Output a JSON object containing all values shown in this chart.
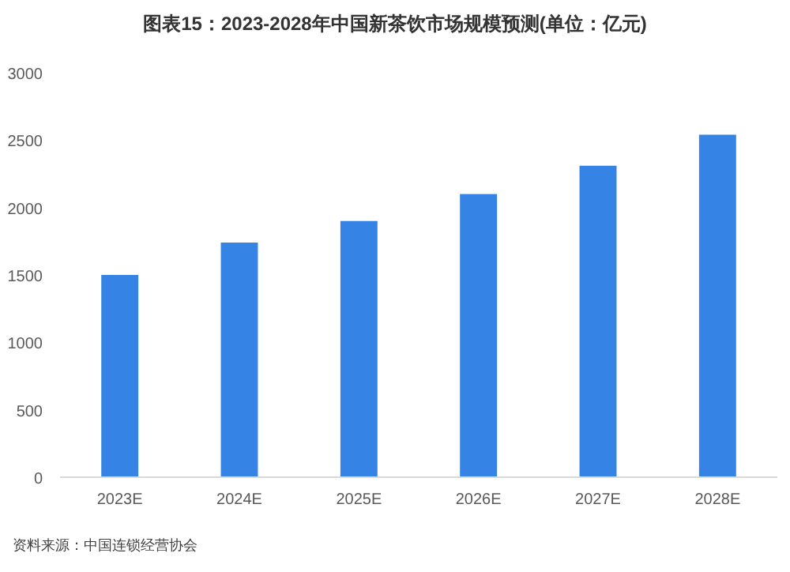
{
  "chart_data": {
    "type": "bar",
    "title": "图表15：2023-2028年中国新茶饮市场规模预测(单位：亿元)",
    "categories": [
      "2023E",
      "2024E",
      "2025E",
      "2026E",
      "2027E",
      "2028E"
    ],
    "values": [
      1500,
      1740,
      1900,
      2100,
      2310,
      2540
    ],
    "color": "#3583e5",
    "ylim": [
      0,
      3000
    ],
    "yticks": [
      0,
      500,
      1000,
      1500,
      2000,
      2500,
      3000
    ],
    "grid": false,
    "annotations": [
      "资料来源：中国连锁经营协会"
    ]
  }
}
